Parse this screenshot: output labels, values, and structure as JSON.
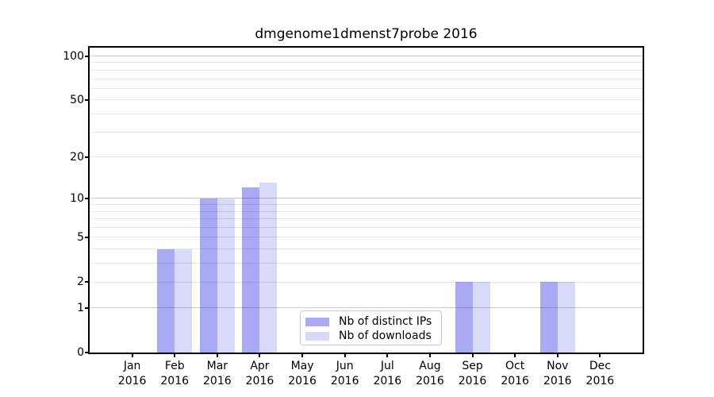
{
  "title": "dmgenome1dmenst7probe 2016",
  "chart_data": {
    "type": "bar",
    "title": "dmgenome1dmenst7probe 2016",
    "categories": [
      "Jan",
      "Feb",
      "Mar",
      "Apr",
      "May",
      "Jun",
      "Jul",
      "Aug",
      "Sep",
      "Oct",
      "Nov",
      "Dec"
    ],
    "category_year": "2016",
    "series": [
      {
        "name": "Nb of distinct IPs",
        "color": "#a9a9f4",
        "values": [
          0,
          4,
          10,
          12,
          0,
          0,
          0,
          0,
          2,
          0,
          2,
          0
        ]
      },
      {
        "name": "Nb of downloads",
        "color": "#d9d9f9",
        "values": [
          0,
          4,
          10,
          13,
          0,
          0,
          0,
          0,
          2,
          0,
          2,
          0
        ]
      }
    ],
    "y_scale": "log1p",
    "ylim": [
      0,
      114
    ],
    "y_ticks": [
      100,
      50,
      20,
      10,
      5,
      2,
      1,
      0
    ],
    "y_major_gridlines": [
      1,
      10,
      100
    ],
    "y_minor_gridlines": [
      2,
      3,
      4,
      5,
      6,
      7,
      8,
      9,
      20,
      30,
      40,
      50,
      60,
      70,
      80,
      90
    ],
    "grid": true,
    "legend_position": "lower center"
  },
  "colors": {
    "bar_dark": "#a9a9f4",
    "bar_light": "#d9d9f9",
    "grid_major": "#c9c9c9",
    "grid_minor": "#e7e7e7",
    "axis": "#000000",
    "background": "#ffffff"
  }
}
